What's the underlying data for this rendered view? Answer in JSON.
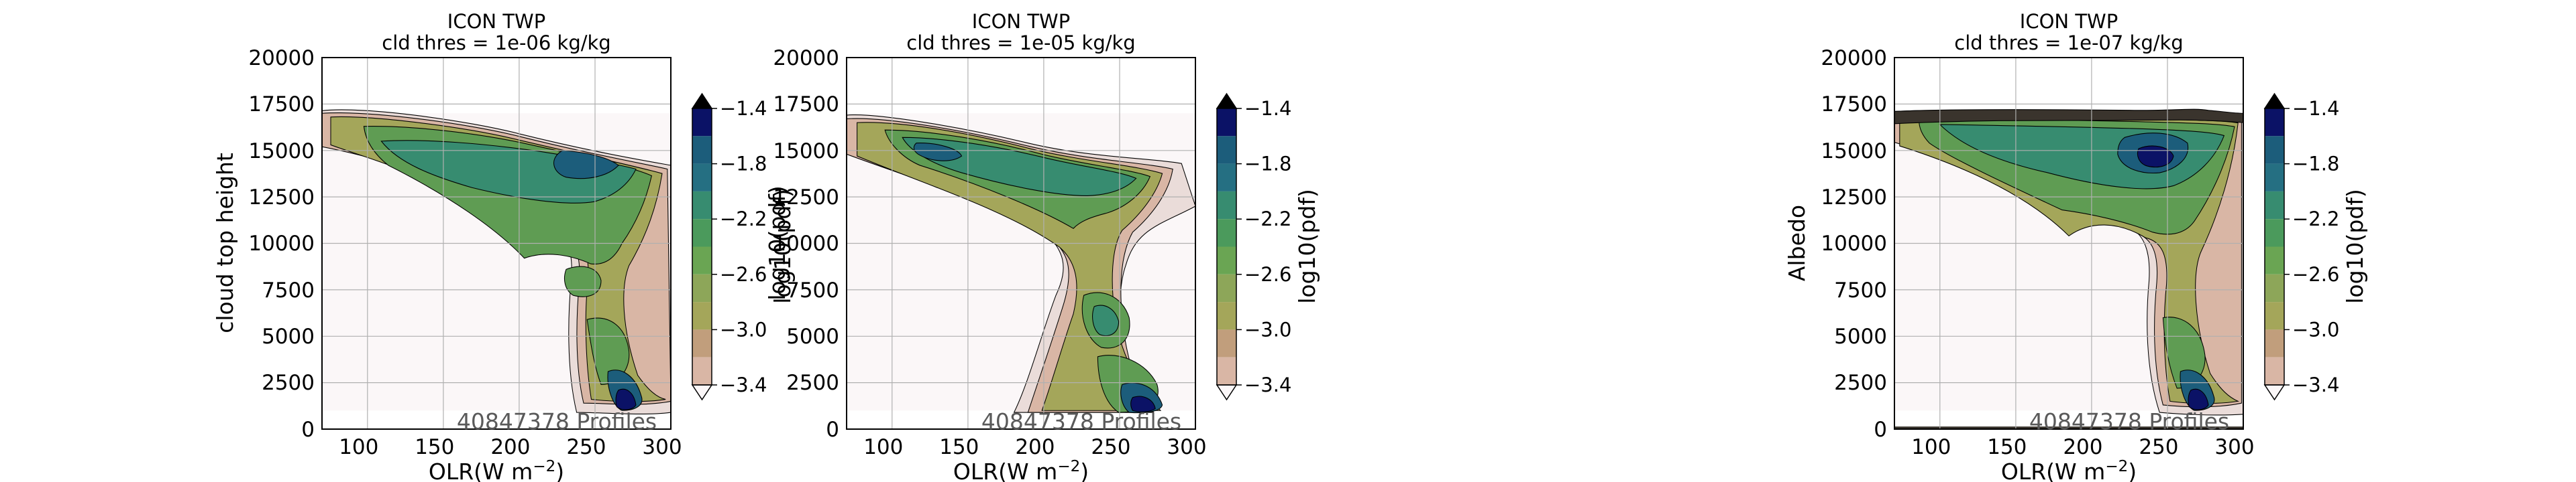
{
  "chart_data": [
    {
      "type": "heatmap",
      "title": "ICON TWP",
      "subtitle": "cld thres = 1e-06 kg/kg",
      "xlabel": "OLR(W m$^{-2}$)",
      "xlabel_main": "OLR(W m",
      "xlabel_sup": "−2",
      "xlabel_close": ")",
      "ylabel": "cloud top height",
      "xlim": [
        80,
        310
      ],
      "ylim": [
        0,
        20000
      ],
      "x_ticks": [
        "100",
        "150",
        "200",
        "250",
        "300"
      ],
      "y_ticks": [
        "0",
        "2500",
        "5000",
        "7500",
        "10000",
        "12500",
        "15000",
        "17500",
        "20000"
      ],
      "grid": true,
      "annotation": "40847378 Profiles",
      "colorbar": {
        "label": "log10(pdf)",
        "ticks": [
          "−3.4",
          "−3.0",
          "−2.6",
          "−2.2",
          "−1.8",
          "−1.4"
        ],
        "range": [
          -3.4,
          -1.4
        ],
        "colormap": "gist_earth_r",
        "extend": "both"
      }
    },
    {
      "type": "heatmap",
      "title": "ICON TWP",
      "subtitle": "cld thres = 1e-05 kg/kg",
      "xlabel": "OLR(W m$^{-2}$)",
      "xlabel_main": "OLR(W m",
      "xlabel_sup": "−2",
      "xlabel_close": ")",
      "ylabel": "log10(pdf)",
      "xlim": [
        80,
        310
      ],
      "ylim": [
        0,
        20000
      ],
      "x_ticks": [
        "100",
        "150",
        "200",
        "250",
        "300"
      ],
      "y_ticks": [
        "0",
        "2500",
        "5000",
        "7500",
        "10000",
        "12500",
        "15000",
        "17500",
        "20000"
      ],
      "grid": true,
      "annotation": "40847378 Profiles",
      "colorbar": {
        "label": "log10(pdf)",
        "ticks": [
          "−3.4",
          "−3.0",
          "−2.6",
          "−2.2",
          "−1.8",
          "−1.4"
        ],
        "range": [
          -3.4,
          -1.4
        ],
        "colormap": "gist_earth_r",
        "extend": "both"
      }
    },
    {
      "type": "heatmap",
      "title": "ICON TWP",
      "subtitle": "cld thres = 1e-07 kg/kg",
      "xlabel": "OLR(W m$^{-2}$)",
      "xlabel_main": "OLR(W m",
      "xlabel_sup": "−2",
      "xlabel_close": ")",
      "ylabel": "Albedo",
      "xlim": [
        80,
        310
      ],
      "ylim": [
        0,
        20000
      ],
      "x_ticks": [
        "100",
        "150",
        "200",
        "250",
        "300"
      ],
      "y_ticks": [
        "0",
        "2500",
        "5000",
        "7500",
        "10000",
        "12500",
        "15000",
        "17500",
        "20000"
      ],
      "grid": true,
      "annotation": "40847378 Profiles",
      "colorbar": {
        "label": "log10(pdf)",
        "ticks": [
          "−3.4",
          "−3.0",
          "−2.6",
          "−2.2",
          "−1.8",
          "−1.4"
        ],
        "range": [
          -3.4,
          -1.4
        ],
        "colormap": "gist_earth_r",
        "extend": "both"
      }
    }
  ]
}
